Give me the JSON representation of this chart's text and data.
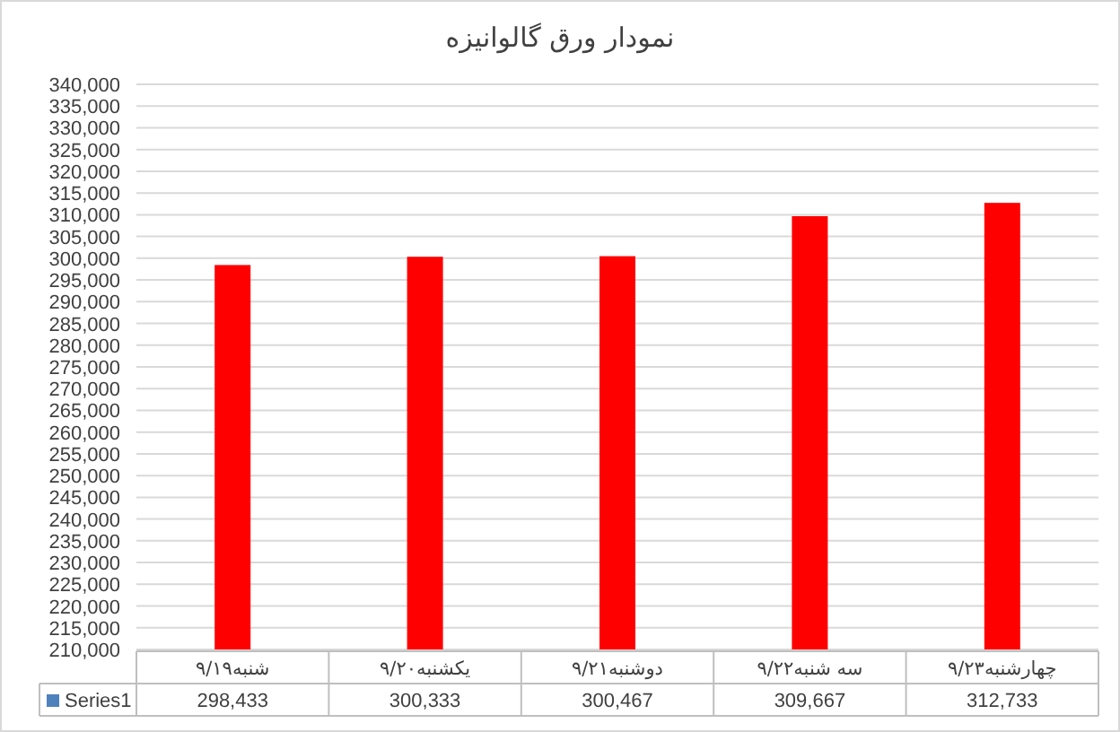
{
  "chart_data": {
    "type": "bar",
    "title": "نمودار ورق گالوانیزه",
    "categories": [
      "۹/۱۹شنبه",
      "۹/۲۰یکشنبه",
      "۹/۲۱دوشنبه",
      "۹/۲۲سه شنبه",
      "۹/۲۳چهارشنبه"
    ],
    "series": [
      {
        "name": "Series1",
        "color": "#4f81bd",
        "colors": [
          "#ff0000",
          "#ff0000",
          "#ff0000",
          "#ff0000",
          "#ff0000"
        ],
        "values": [
          298433,
          300333,
          300467,
          309667,
          312733
        ],
        "value_labels": [
          "298,433",
          "300,333",
          "300,467",
          "309,667",
          "312,733"
        ]
      }
    ],
    "ylim": [
      210000,
      340000
    ],
    "yticks": [
      {
        "value": 210000,
        "label": "210,000"
      },
      {
        "value": 215000,
        "label": "215,000"
      },
      {
        "value": 220000,
        "label": "220,000"
      },
      {
        "value": 225000,
        "label": "225,000"
      },
      {
        "value": 230000,
        "label": "230,000"
      },
      {
        "value": 235000,
        "label": "235,000"
      },
      {
        "value": 240000,
        "label": "240,000"
      },
      {
        "value": 245000,
        "label": "245,000"
      },
      {
        "value": 250000,
        "label": "250,000"
      },
      {
        "value": 255000,
        "label": "255,000"
      },
      {
        "value": 260000,
        "label": "260,000"
      },
      {
        "value": 265000,
        "label": "265,000"
      },
      {
        "value": 270000,
        "label": "270,000"
      },
      {
        "value": 275000,
        "label": "275,000"
      },
      {
        "value": 280000,
        "label": "280,000"
      },
      {
        "value": 285000,
        "label": "285,000"
      },
      {
        "value": 290000,
        "label": "290,000"
      },
      {
        "value": 295000,
        "label": "295,000"
      },
      {
        "value": 300000,
        "label": "300,000"
      },
      {
        "value": 305000,
        "label": "305,000"
      },
      {
        "value": 310000,
        "label": "310,000"
      },
      {
        "value": 315000,
        "label": "315,000"
      },
      {
        "value": 320000,
        "label": "320,000"
      },
      {
        "value": 325000,
        "label": "325,000"
      },
      {
        "value": 330000,
        "label": "330,000"
      },
      {
        "value": 335000,
        "label": "335,000"
      },
      {
        "value": 340000,
        "label": "340,000"
      }
    ],
    "grid": "y",
    "legend": "bottom"
  }
}
